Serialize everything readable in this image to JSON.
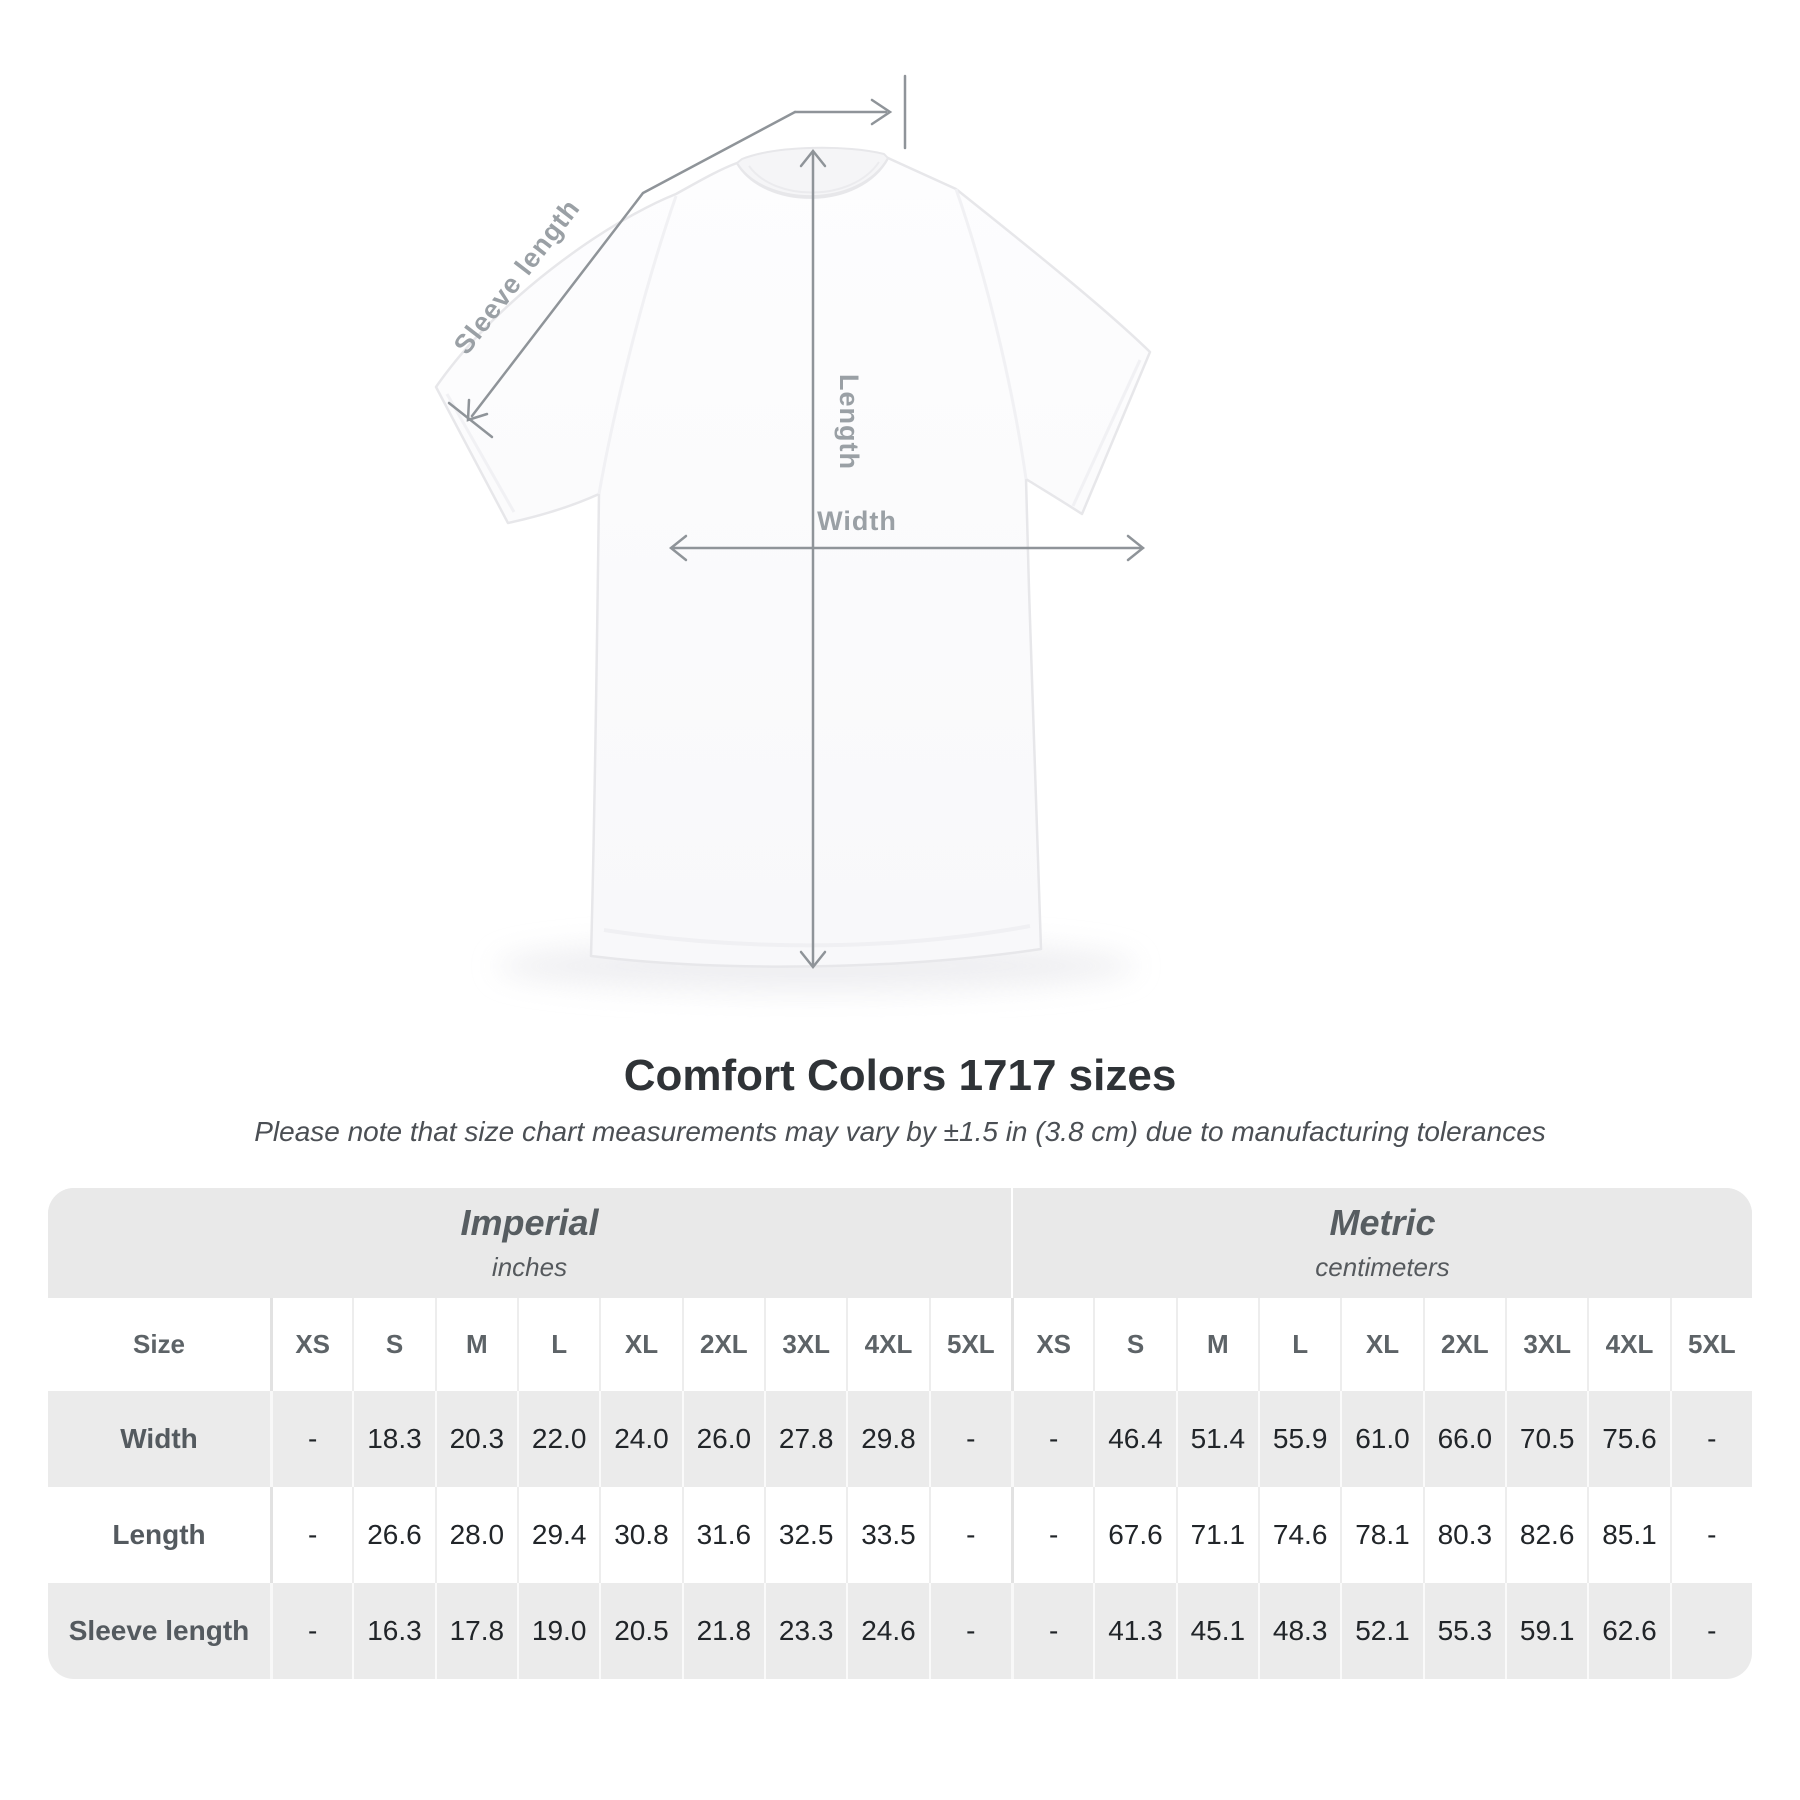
{
  "title": "Comfort Colors 1717 sizes",
  "subtitle": "Please note that size chart measurements may vary by ±1.5 in (3.8 cm) due to manufacturing tolerances",
  "diagram": {
    "sleeve_length_label": "Sleeve length",
    "length_label": "Length",
    "width_label": "Width"
  },
  "colors": {
    "annotation_line": "#8f9499",
    "annotation_text": "#9aa0a5",
    "band_background": "#e9e9e9",
    "striped_row_background": "#ebebeb",
    "title_text": "#2f3337",
    "value_text": "#212529"
  },
  "chart_data": {
    "type": "table",
    "title": "Comfort Colors 1717 sizes",
    "note": "Please note that size chart measurements may vary by ±1.5 in (3.8 cm) due to manufacturing tolerances",
    "unit_groups": [
      {
        "label": "Imperial",
        "unit": "inches"
      },
      {
        "label": "Metric",
        "unit": "centimeters"
      }
    ],
    "size_header": "Size",
    "sizes": [
      "XS",
      "S",
      "M",
      "L",
      "XL",
      "2XL",
      "3XL",
      "4XL",
      "5XL"
    ],
    "rows": [
      {
        "label": "Width",
        "imperial": [
          "-",
          "18.3",
          "20.3",
          "22.0",
          "24.0",
          "26.0",
          "27.8",
          "29.8",
          "-"
        ],
        "metric": [
          "-",
          "46.4",
          "51.4",
          "55.9",
          "61.0",
          "66.0",
          "70.5",
          "75.6",
          "-"
        ]
      },
      {
        "label": "Length",
        "imperial": [
          "-",
          "26.6",
          "28.0",
          "29.4",
          "30.8",
          "31.6",
          "32.5",
          "33.5",
          "-"
        ],
        "metric": [
          "-",
          "67.6",
          "71.1",
          "74.6",
          "78.1",
          "80.3",
          "82.6",
          "85.1",
          "-"
        ]
      },
      {
        "label": "Sleeve length",
        "imperial": [
          "-",
          "16.3",
          "17.8",
          "19.0",
          "20.5",
          "21.8",
          "23.3",
          "24.6",
          "-"
        ],
        "metric": [
          "-",
          "41.3",
          "45.1",
          "48.3",
          "52.1",
          "55.3",
          "59.1",
          "62.6",
          "-"
        ]
      }
    ]
  }
}
